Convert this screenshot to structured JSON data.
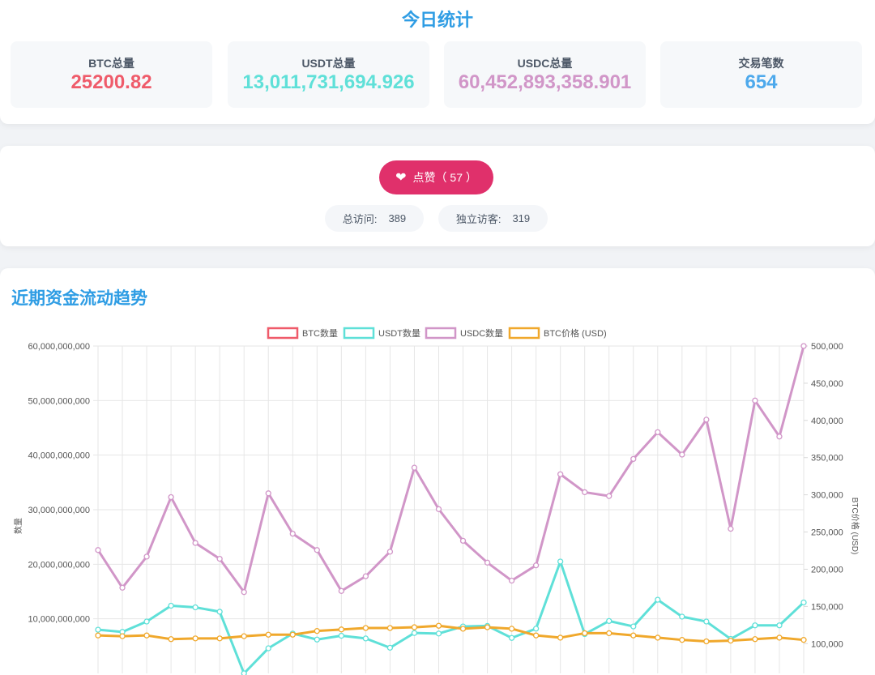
{
  "stats": {
    "title": "今日统计",
    "items": [
      {
        "label": "BTC总量",
        "value": "25200.82",
        "color": "#ef5b6a"
      },
      {
        "label": "USDT总量",
        "value": "13,011,731,694.926",
        "color": "#5fe0d8"
      },
      {
        "label": "USDC总量",
        "value": "60,452,893,358.901",
        "color": "#d196c8"
      },
      {
        "label": "交易笔数",
        "value": "654",
        "color": "#4da9ec"
      }
    ]
  },
  "like": {
    "icon": "heart-icon",
    "label": "点赞（ 57 ）",
    "color": "#e0306b"
  },
  "visits": {
    "total_label": "总访问:",
    "total_value": "389",
    "unique_label": "独立访客:",
    "unique_value": "319"
  },
  "trend": {
    "title": "近期资金流动趋势"
  },
  "chart_data": {
    "type": "line",
    "legend_position": "top",
    "grid": true,
    "left_axis": {
      "label": "数量",
      "ticks": [
        "60,000,000,000",
        "50,000,000,000",
        "40,000,000,000",
        "30,000,000,000",
        "20,000,000,000",
        "10,000,000,000"
      ],
      "range": [
        0,
        60000000000
      ]
    },
    "right_axis": {
      "label": "BTC价格 (USD)",
      "ticks": [
        "500,000",
        "450,000",
        "400,000",
        "350,000",
        "300,000",
        "250,000",
        "200,000",
        "150,000",
        "100,000"
      ],
      "range": [
        60000,
        500000
      ]
    },
    "series": [
      {
        "name": "BTC数量",
        "color": "#ef5b6a",
        "axis": "left",
        "values": []
      },
      {
        "name": "USDT数量",
        "color": "#5fe0d8",
        "axis": "left",
        "values": [
          8000000000,
          7600000000,
          9500000000,
          12400000000,
          12100000000,
          11300000000,
          0,
          4600000000,
          7300000000,
          6200000000,
          6900000000,
          6400000000,
          4700000000,
          7400000000,
          7300000000,
          8600000000,
          8700000000,
          6500000000,
          8200000000,
          20500000000,
          7200000000,
          9600000000,
          8600000000,
          13500000000,
          10400000000,
          9500000000,
          6300000000,
          8800000000,
          8800000000,
          13000000000
        ]
      },
      {
        "name": "USDC数量",
        "color": "#d196c8",
        "axis": "left",
        "values": [
          22600000000,
          15700000000,
          21400000000,
          32300000000,
          23900000000,
          21000000000,
          14900000000,
          33000000000,
          25600000000,
          22600000000,
          15100000000,
          17800000000,
          22300000000,
          37700000000,
          30100000000,
          24300000000,
          20300000000,
          17000000000,
          19800000000,
          36500000000,
          33200000000,
          32500000000,
          39300000000,
          44200000000,
          40100000000,
          46500000000,
          26500000000,
          50000000000,
          43400000000,
          60000000000
        ]
      },
      {
        "name": "BTC价格 (USD)",
        "color": "#f0a82c",
        "axis": "right",
        "values": [
          111000,
          110000,
          111000,
          106000,
          107000,
          107000,
          110000,
          112000,
          112000,
          117000,
          119000,
          121000,
          121000,
          122000,
          124000,
          120000,
          122000,
          120000,
          111000,
          108000,
          114000,
          114000,
          111000,
          108000,
          105000,
          103000,
          104000,
          106000,
          108000,
          105000
        ]
      }
    ]
  }
}
